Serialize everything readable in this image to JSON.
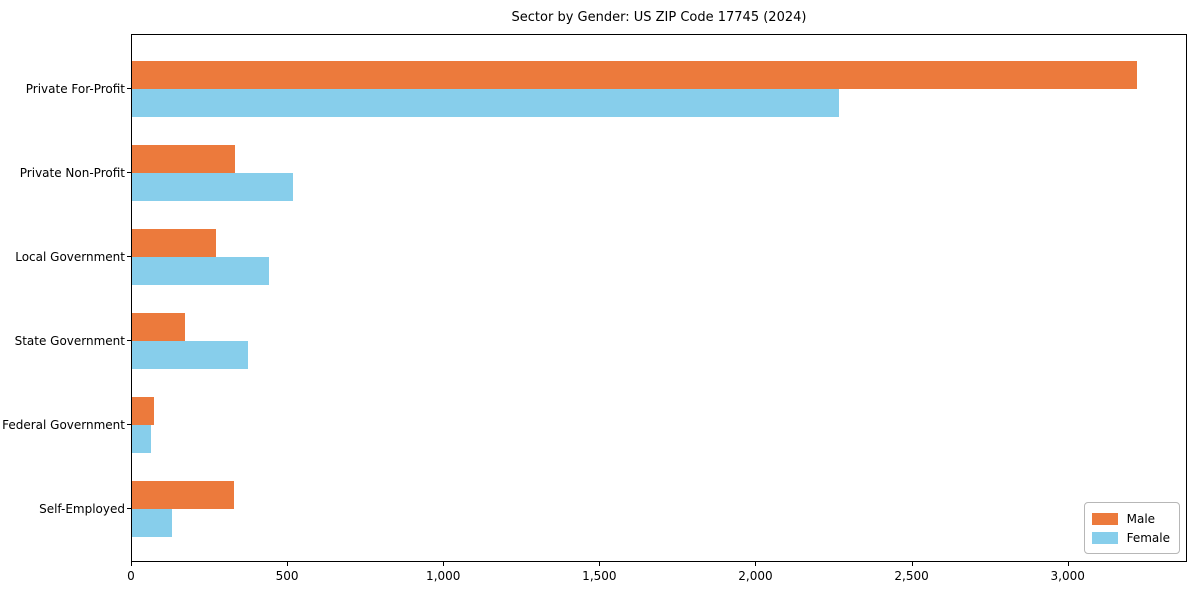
{
  "chart_data": {
    "type": "bar",
    "orientation": "horizontal",
    "title": "Sector by Gender: US ZIP Code 17745 (2024)",
    "categories": [
      "Private For-Profit",
      "Private Non-Profit",
      "Local Government",
      "State Government",
      "Federal Government",
      "Self-Employed"
    ],
    "series": [
      {
        "name": "Male",
        "color": "#EC7A3C",
        "values": [
          3220,
          330,
          270,
          170,
          71,
          327
        ]
      },
      {
        "name": "Female",
        "color": "#87CEEB",
        "values": [
          2265,
          515,
          440,
          372,
          62,
          128
        ]
      }
    ],
    "xlabel": "",
    "ylabel": "",
    "xlim": [
      0,
      3382
    ],
    "x_ticks": [
      {
        "value": 0,
        "label": "0"
      },
      {
        "value": 500,
        "label": "500"
      },
      {
        "value": 1000,
        "label": "1,000"
      },
      {
        "value": 1500,
        "label": "1,500"
      },
      {
        "value": 2000,
        "label": "2,000"
      },
      {
        "value": 2500,
        "label": "2,500"
      },
      {
        "value": 3000,
        "label": "3,000"
      }
    ],
    "grid": false,
    "legend": {
      "position": "lower right",
      "entries": [
        "Male",
        "Female"
      ]
    },
    "colors": {
      "axis": "#000000",
      "text": "#000000",
      "background": "#ffffff",
      "legend_border": "#b7b7b7"
    }
  }
}
